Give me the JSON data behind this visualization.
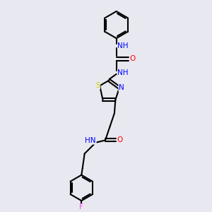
{
  "bg_color": "#e8e8f0",
  "bond_color": "#000000",
  "atom_colors": {
    "N": "#0000ff",
    "O": "#ff0000",
    "S": "#cccc00",
    "F": "#ff44ff",
    "C": "#000000"
  },
  "figsize": [
    3.0,
    3.0
  ],
  "dpi": 100,
  "xlim": [
    0,
    10
  ],
  "ylim": [
    0,
    10
  ]
}
